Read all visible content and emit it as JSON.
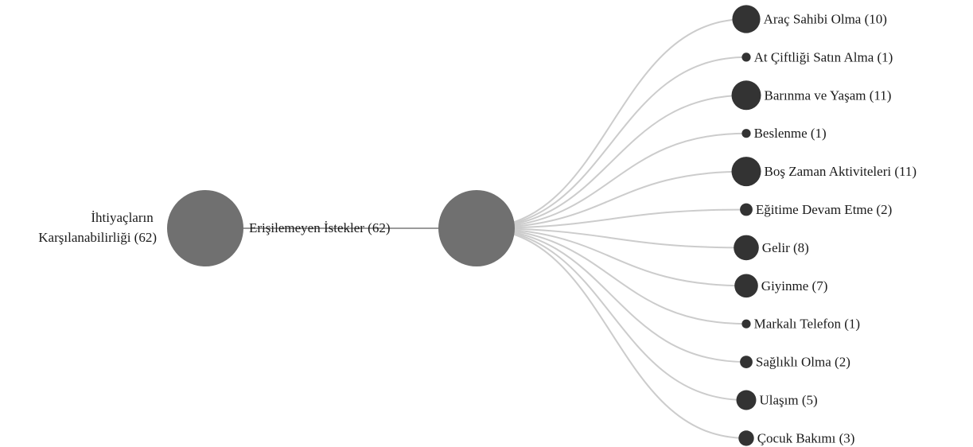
{
  "tree": {
    "root": {
      "label_lines": [
        "İhtiyaçların",
        "Karşılanabilirliği (62)"
      ],
      "value": 62
    },
    "middle": {
      "label": "Erişilemeyen İstekler (62)",
      "value": 62
    },
    "leaves": [
      {
        "label": "Araç Sahibi Olma (10)",
        "value": 10
      },
      {
        "label": "At Çiftliği Satın Alma (1)",
        "value": 1
      },
      {
        "label": "Barınma ve Yaşam (11)",
        "value": 11
      },
      {
        "label": "Beslenme (1)",
        "value": 1
      },
      {
        "label": "Boş Zaman Aktiviteleri (11)",
        "value": 11
      },
      {
        "label": "Eğitime Devam Etme (2)",
        "value": 2
      },
      {
        "label": "Gelir (8)",
        "value": 8
      },
      {
        "label": "Giyinme (7)",
        "value": 7
      },
      {
        "label": "Markalı Telefon (1)",
        "value": 1
      },
      {
        "label": "Sağlıklı Olma (2)",
        "value": 2
      },
      {
        "label": "Ulaşım (5)",
        "value": 5
      },
      {
        "label": "Çocuk Bakımı (3)",
        "value": 3
      }
    ]
  },
  "colors": {
    "internal_node": "#707070",
    "leaf_node": "#333333",
    "link": "#cccccc",
    "text": "#1a1a1a"
  }
}
